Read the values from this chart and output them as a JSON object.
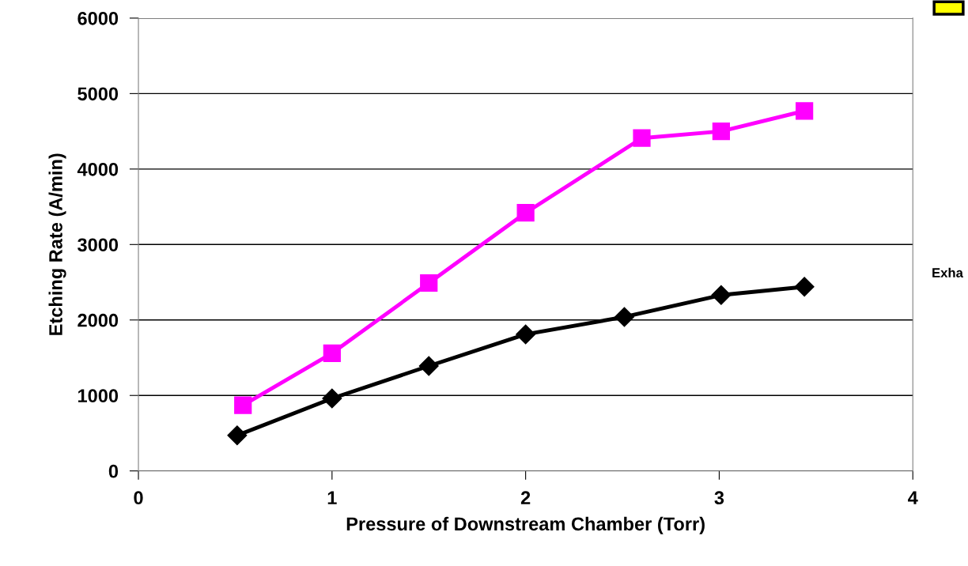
{
  "chart_data": {
    "type": "line",
    "xlabel": "Pressure of Downstream Chamber (Torr)",
    "ylabel": "Etching Rate (A/min)",
    "xlim": [
      0,
      4
    ],
    "xticks": [
      0,
      1,
      2,
      3,
      4
    ],
    "ylim": [
      0,
      6000
    ],
    "yticks": [
      0,
      1000,
      2000,
      3000,
      4000,
      5000,
      6000
    ],
    "grid": "y",
    "legend": false,
    "line_style": "solid",
    "series": [
      {
        "color": "#000000",
        "marker": "diamond",
        "x": [
          0.51,
          1.0,
          1.5,
          2.0,
          2.51,
          3.01,
          3.44
        ],
        "values": [
          470,
          960,
          1390,
          1810,
          2040,
          2330,
          2440
        ]
      },
      {
        "color": "#ff00ff",
        "marker": "square",
        "x": [
          0.54,
          1.0,
          1.5,
          2.0,
          2.6,
          3.01,
          3.44
        ],
        "values": [
          870,
          1560,
          2490,
          3420,
          4410,
          4500,
          4770
        ]
      }
    ],
    "annotations": [
      "Exha"
    ]
  }
}
